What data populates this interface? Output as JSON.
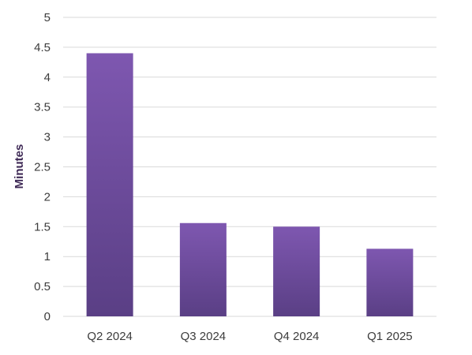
{
  "chart_data": {
    "type": "bar",
    "categories": [
      "Q2 2024",
      "Q3 2024",
      "Q4 2024",
      "Q1 2025"
    ],
    "values": [
      4.4,
      1.56,
      1.5,
      1.13
    ],
    "title": "",
    "xlabel": "",
    "ylabel": "Minutes",
    "ylim": [
      0,
      5
    ],
    "yticks": [
      "0",
      "0.5",
      "1",
      "1.5",
      "2",
      "2.5",
      "3",
      "3.5",
      "4",
      "4.5",
      "5"
    ],
    "grid": true,
    "legend": "none",
    "colors": {
      "bar_top": "#7e57b0",
      "bar_bottom": "#5a3f85",
      "grid": "#d9d9d9"
    }
  }
}
